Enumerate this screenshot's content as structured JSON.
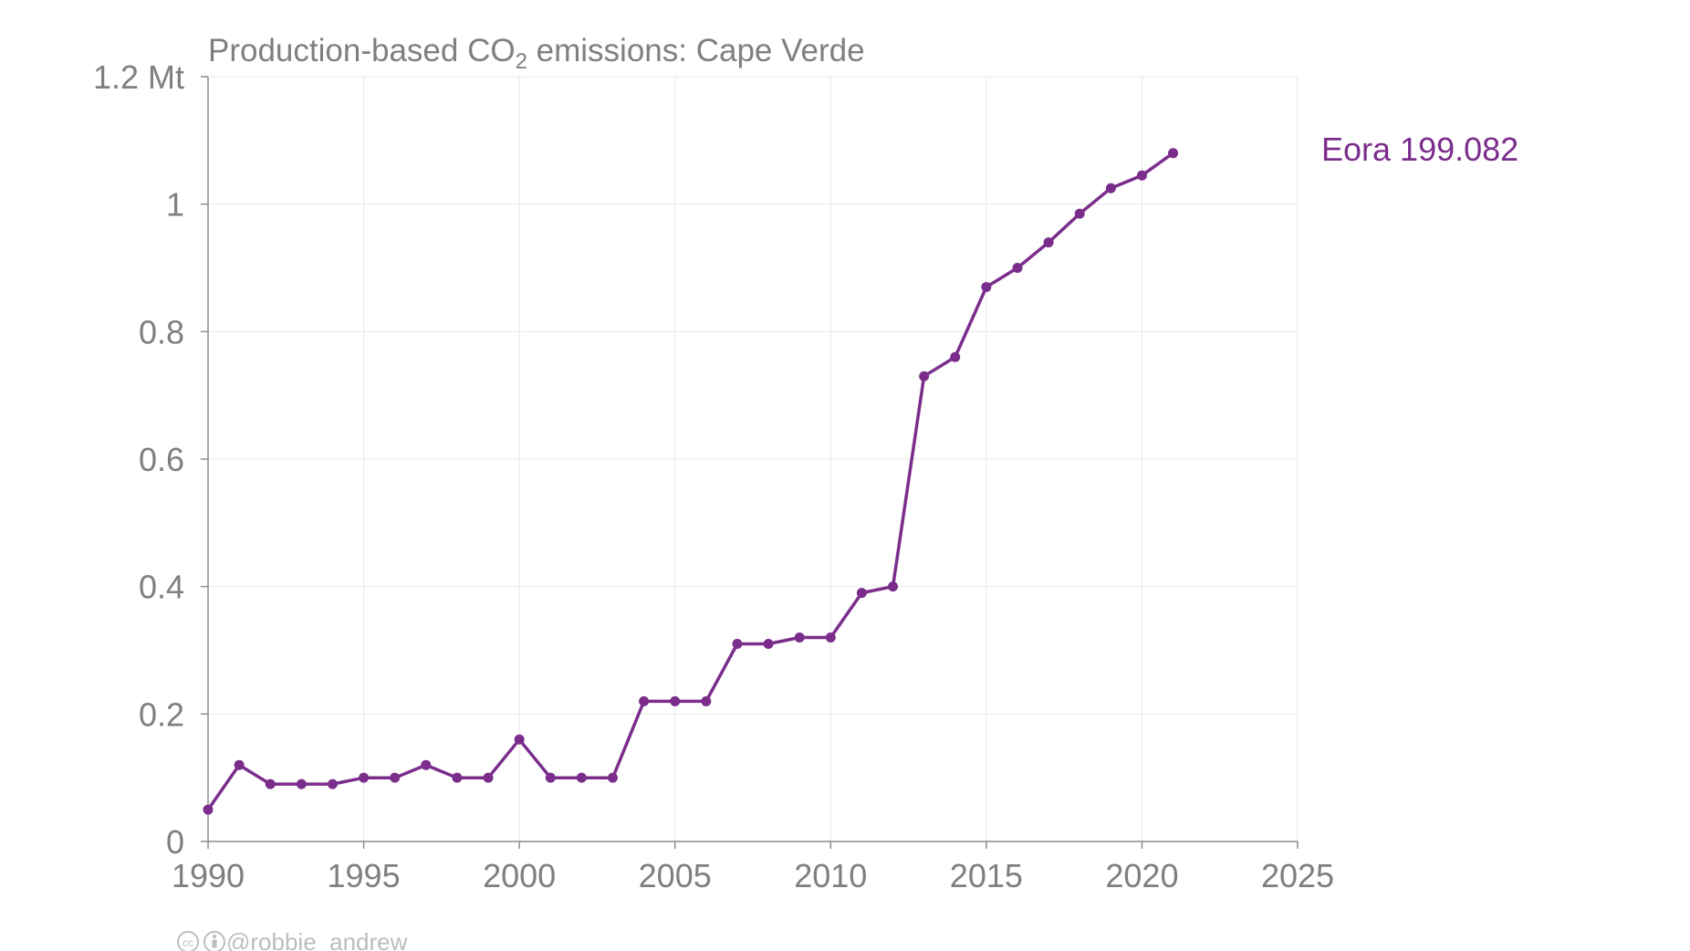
{
  "chart_data": {
    "type": "line",
    "title": "Production-based CO₂ emissions: Cape Verde",
    "title_parts": {
      "prefix": "Production-based CO",
      "subscript": "2",
      "suffix": " emissions: Cape Verde"
    },
    "y_unit": "Mt",
    "xlim": [
      1990,
      2025
    ],
    "ylim": [
      0,
      1.2
    ],
    "x_ticks": [
      1990,
      1995,
      2000,
      2005,
      2010,
      2015,
      2020,
      2025
    ],
    "x_tick_labels": [
      "1990",
      "1995",
      "2000",
      "2005",
      "2010",
      "2015",
      "2020",
      "2025"
    ],
    "y_ticks": [
      0,
      0.2,
      0.4,
      0.6,
      0.8,
      1,
      1.2
    ],
    "y_tick_labels": [
      "0",
      "0.2",
      "0.4",
      "0.6",
      "0.8",
      "1",
      "1.2 Mt"
    ],
    "grid": true,
    "legend": "direct label right of plot",
    "series": [
      {
        "name": "Eora 199.082",
        "color": "#7b2d8b",
        "x": [
          1990,
          1991,
          1992,
          1993,
          1994,
          1995,
          1996,
          1997,
          1998,
          1999,
          2000,
          2001,
          2002,
          2003,
          2004,
          2005,
          2006,
          2007,
          2008,
          2009,
          2010,
          2011,
          2012,
          2013,
          2014,
          2015,
          2016,
          2017,
          2018,
          2019,
          2020,
          2021
        ],
        "values": [
          0.05,
          0.12,
          0.09,
          0.09,
          0.09,
          0.1,
          0.1,
          0.12,
          0.1,
          0.1,
          0.16,
          0.1,
          0.1,
          0.1,
          0.22,
          0.22,
          0.22,
          0.31,
          0.31,
          0.32,
          0.32,
          0.39,
          0.4,
          0.73,
          0.76,
          0.87,
          0.9,
          0.94,
          0.985,
          1.025,
          1.045,
          1.08
        ]
      }
    ]
  },
  "credit": {
    "text": "@robbie_andrew",
    "icons": [
      "cc-icon",
      "by-icon"
    ]
  }
}
